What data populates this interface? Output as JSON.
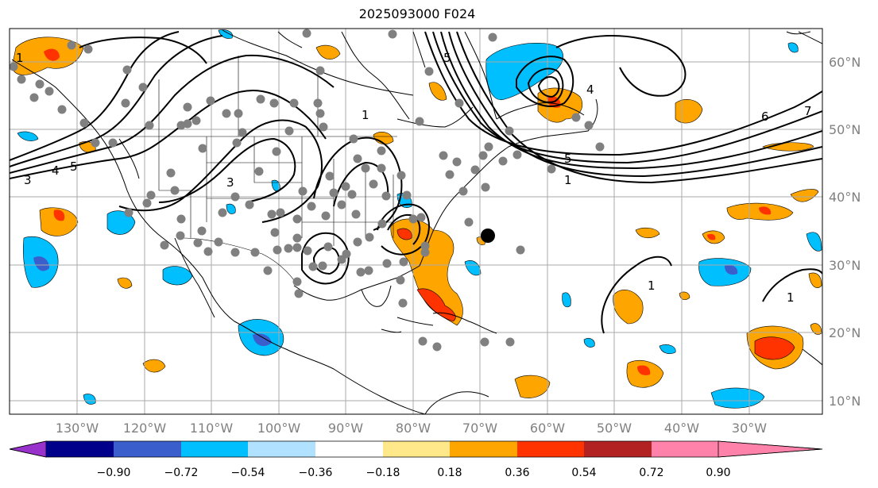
{
  "title": "2025093000 F024",
  "map": {
    "lon_range": [
      -140,
      -19
    ],
    "lat_range": [
      8,
      65
    ],
    "lon_ticks": [
      "130°W",
      "120°W",
      "110°W",
      "100°W",
      "90°W",
      "80°W",
      "70°W",
      "60°W",
      "50°W",
      "40°W",
      "30°W"
    ],
    "lat_ticks": [
      "60°N",
      "50°N",
      "40°N",
      "30°N",
      "20°N",
      "10°N"
    ],
    "gridlines": true,
    "storm_marker": {
      "lon": -69.5,
      "lat": 34.5
    },
    "contour_labels": [
      "1",
      "3",
      "4",
      "5",
      "3",
      "1",
      "5",
      "4",
      "6",
      "7",
      "5",
      "1",
      "1",
      "1"
    ]
  },
  "colorbar": {
    "tick_labels": [
      "−0.90",
      "−0.72",
      "−0.54",
      "−0.36",
      "−0.18",
      "0.18",
      "0.36",
      "0.54",
      "0.72",
      "0.90"
    ],
    "colors": [
      "#9932cc",
      "#00008b",
      "#3a5fcd",
      "#00bfff",
      "#b0e2ff",
      "#ffffff",
      "#ffe88a",
      "#ffa500",
      "#ff3300",
      "#b22222",
      "#ff82ab"
    ],
    "extend": "both"
  }
}
